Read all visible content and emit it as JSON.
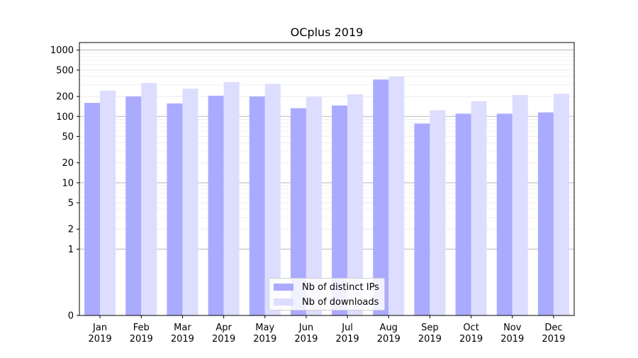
{
  "chart_data": {
    "type": "bar",
    "title": "OCplus 2019",
    "xlabel": "",
    "ylabel": "",
    "y_scale": "symlog",
    "ylim": [
      0,
      1300
    ],
    "y_ticks": [
      0,
      1,
      2,
      5,
      10,
      20,
      50,
      100,
      200,
      500,
      1000
    ],
    "grid": true,
    "legend_position": "bottom-center",
    "categories": [
      "Jan\n2019",
      "Feb\n2019",
      "Mar\n2019",
      "Apr\n2019",
      "May\n2019",
      "Jun\n2019",
      "Jul\n2019",
      "Aug\n2019",
      "Sep\n2019",
      "Oct\n2019",
      "Nov\n2019",
      "Dec\n2019"
    ],
    "series": [
      {
        "name": "Nb of distinct IPs",
        "color": "#aaaaff",
        "values": [
          160,
          200,
          157,
          205,
          200,
          133,
          146,
          360,
          78,
          110,
          110,
          115
        ]
      },
      {
        "name": "Nb of downloads",
        "color": "#ddddff",
        "values": [
          245,
          320,
          262,
          330,
          310,
          198,
          215,
          400,
          124,
          170,
          210,
          220
        ]
      }
    ]
  }
}
